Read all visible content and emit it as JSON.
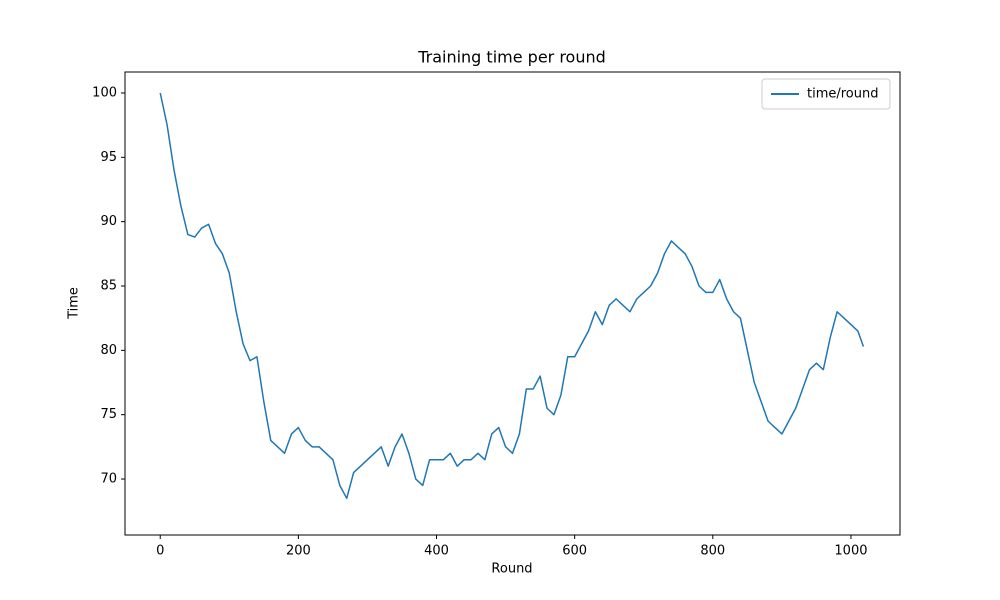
{
  "chart_data": {
    "type": "line",
    "title": "Training time per round",
    "xlabel": "Round",
    "ylabel": "Time",
    "x": [
      0,
      10,
      20,
      30,
      40,
      50,
      60,
      70,
      80,
      90,
      100,
      110,
      120,
      130,
      140,
      150,
      160,
      170,
      180,
      190,
      200,
      210,
      220,
      230,
      240,
      250,
      260,
      270,
      280,
      290,
      300,
      310,
      320,
      330,
      340,
      350,
      360,
      370,
      380,
      390,
      400,
      410,
      420,
      430,
      440,
      450,
      460,
      470,
      480,
      490,
      500,
      510,
      520,
      530,
      540,
      550,
      560,
      570,
      580,
      590,
      600,
      610,
      620,
      630,
      640,
      650,
      660,
      670,
      680,
      690,
      700,
      710,
      720,
      730,
      740,
      750,
      760,
      770,
      780,
      790,
      800,
      810,
      820,
      830,
      840,
      850,
      860,
      870,
      880,
      890,
      900,
      910,
      920,
      930,
      940,
      950,
      960,
      970,
      980,
      990,
      1000,
      1010,
      1018
    ],
    "series": [
      {
        "name": "time/round",
        "color": "#1f77b4",
        "values": [
          100,
          97.5,
          94,
          91.2,
          89,
          88.8,
          89.5,
          89.8,
          88.3,
          87.5,
          86,
          83,
          80.5,
          79.2,
          79.5,
          76,
          73,
          72.5,
          72,
          73.5,
          74,
          73,
          72.5,
          72.5,
          72,
          71.5,
          69.5,
          68.5,
          70.5,
          71,
          71.5,
          72,
          72.5,
          71,
          72.5,
          73.5,
          72,
          70,
          69.5,
          71.5,
          71.5,
          71.5,
          72,
          71,
          71.5,
          71.5,
          72,
          71.5,
          73.5,
          74,
          72.5,
          72,
          73.5,
          77,
          77,
          78,
          75.5,
          75,
          76.5,
          79.5,
          79.5,
          80.5,
          81.5,
          83,
          82,
          83.5,
          84,
          83.5,
          83,
          84,
          84.5,
          85,
          86,
          87.5,
          88.5,
          88,
          87.5,
          86.5,
          85,
          84.5,
          84.5,
          85.5,
          84,
          83,
          82.5,
          80,
          77.5,
          76,
          74.5,
          74,
          73.5,
          74.5,
          75.5,
          77,
          78.5,
          79,
          78.5,
          81,
          83,
          82.5,
          82,
          81.5,
          80.3
        ]
      }
    ],
    "xlim": [
      -51,
      1071
    ],
    "ylim": [
      65.65,
      101.63
    ],
    "xticks": [
      0,
      200,
      400,
      600,
      800,
      1000
    ],
    "yticks": [
      70,
      75,
      80,
      85,
      90,
      95,
      100
    ],
    "legend": "upper right",
    "grid": false
  }
}
